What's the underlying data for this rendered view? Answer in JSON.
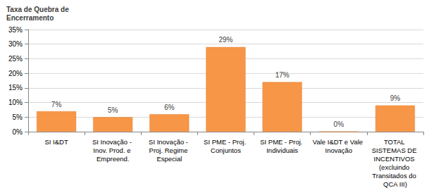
{
  "chart_data": {
    "type": "bar",
    "y_label": "Taxa de Quebra de Encerramento",
    "categories": [
      "SI I&DT",
      "SI Inovação - Inov. Prod. e Empreend.",
      "SI Inovação - Proj. Regime Especial",
      "SI PME - Proj. Conjuntos",
      "SI PME - Proj. Individuais",
      "Vale I&DT e Vale Inovação",
      "TOTAL SISTEMAS DE INCENTIVOS (excluindo Transitados do QCA III)"
    ],
    "values": [
      7,
      5,
      6,
      29,
      17,
      0,
      9
    ],
    "value_labels": [
      "7%",
      "5%",
      "6%",
      "29%",
      "17%",
      "0%",
      "9%"
    ],
    "color": "#f79646",
    "ylim": [
      0,
      35
    ],
    "yticks": [
      {
        "value": 0,
        "label": "0%"
      },
      {
        "value": 5,
        "label": "5%"
      },
      {
        "value": 10,
        "label": "10%"
      },
      {
        "value": 15,
        "label": "15%"
      },
      {
        "value": 20,
        "label": "20%"
      },
      {
        "value": 25,
        "label": "25%"
      },
      {
        "value": 30,
        "label": "30%"
      },
      {
        "value": 35,
        "label": "35%"
      }
    ],
    "grid": true,
    "data_labels": true
  }
}
